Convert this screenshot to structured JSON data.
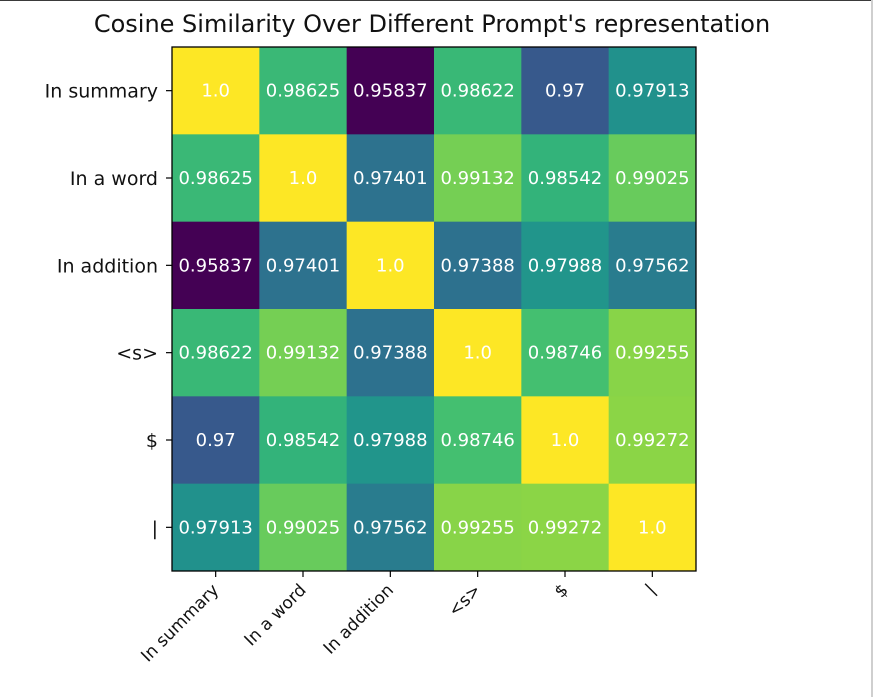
{
  "chart_data": {
    "type": "heatmap",
    "title": "Cosine Similarity Over Different Prompt's representation",
    "xlabel": "",
    "ylabel": "",
    "colormap": "viridis",
    "row_labels": [
      "In summary",
      "In a word",
      "In addition",
      "<s>",
      "$",
      "|"
    ],
    "col_labels": [
      "In summary",
      "In a word",
      "In addition",
      "<s>",
      "$",
      "|"
    ],
    "values": [
      [
        1.0,
        0.98625,
        0.95837,
        0.98622,
        0.97,
        0.97913
      ],
      [
        0.98625,
        1.0,
        0.97401,
        0.99132,
        0.98542,
        0.99025
      ],
      [
        0.95837,
        0.97401,
        1.0,
        0.97388,
        0.97988,
        0.97562
      ],
      [
        0.98622,
        0.99132,
        0.97388,
        1.0,
        0.98746,
        0.99255
      ],
      [
        0.97,
        0.98542,
        0.97988,
        0.98746,
        1.0,
        0.99272
      ],
      [
        0.97913,
        0.99025,
        0.97562,
        0.99255,
        0.99272,
        1.0
      ]
    ],
    "cell_labels": [
      [
        "1.0",
        "0.98625",
        "0.95837",
        "0.98622",
        "0.97",
        "0.97913"
      ],
      [
        "0.98625",
        "1.0",
        "0.97401",
        "0.99132",
        "0.98542",
        "0.99025"
      ],
      [
        "0.95837",
        "0.97401",
        "1.0",
        "0.97388",
        "0.97988",
        "0.97562"
      ],
      [
        "0.98622",
        "0.99132",
        "0.97388",
        "1.0",
        "0.98746",
        "0.99255"
      ],
      [
        "0.97",
        "0.98542",
        "0.97988",
        "0.98746",
        "1.0",
        "0.99272"
      ],
      [
        "0.97913",
        "0.99025",
        "0.97562",
        "0.99255",
        "0.99272",
        "1.0"
      ]
    ],
    "value_range": [
      0.95837,
      1.0
    ],
    "grid": false,
    "colorbar": false
  }
}
